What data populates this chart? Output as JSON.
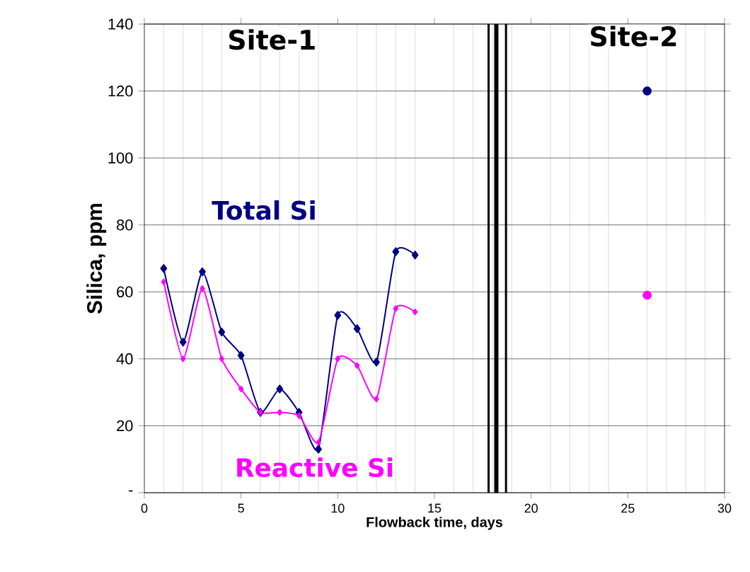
{
  "chart_data": {
    "type": "line",
    "xlabel": "Flowback time, days",
    "ylabel": "Silica, ppm",
    "xlim": [
      0,
      30
    ],
    "xticks": [
      0,
      5,
      10,
      15,
      20,
      25,
      30
    ],
    "ylim": [
      0,
      140
    ],
    "yticks": [
      {
        "value": 0,
        "label": "-"
      },
      20,
      40,
      60,
      80,
      100,
      120,
      140
    ],
    "grid": true,
    "marker": "diamond",
    "line_style": "solid",
    "series": [
      {
        "name": "Total Si",
        "color": "#000080",
        "x": [
          1,
          2,
          3,
          4,
          5,
          6,
          7,
          8,
          9,
          10,
          11,
          12,
          13,
          14
        ],
        "values": [
          67,
          45,
          66,
          48,
          41,
          24,
          31,
          24,
          13,
          53,
          49,
          39,
          72,
          71
        ]
      },
      {
        "name": "Reactive Si",
        "color": "#ff00ff",
        "x": [
          1,
          2,
          3,
          4,
          5,
          6,
          7,
          8,
          9,
          10,
          11,
          12,
          13,
          14
        ],
        "values": [
          63,
          40,
          61,
          40,
          31,
          24,
          24,
          23,
          15,
          40,
          38,
          28,
          55,
          54
        ]
      },
      {
        "type": "scatter",
        "marker": "circle",
        "color": "#000080",
        "x": [
          26
        ],
        "values": [
          120
        ]
      },
      {
        "type": "scatter",
        "marker": "circle",
        "color": "#ff00ff",
        "x": [
          26
        ],
        "values": [
          59
        ]
      }
    ],
    "ref_lines": [
      {
        "axis": "x",
        "value": 17.8,
        "color": "#000000"
      },
      {
        "axis": "x",
        "value": 18.2,
        "color": "#000000"
      },
      {
        "axis": "x",
        "value": 18.7,
        "color": "#000000"
      }
    ],
    "annotations": [
      "Site-1",
      "Site-2"
    ]
  }
}
